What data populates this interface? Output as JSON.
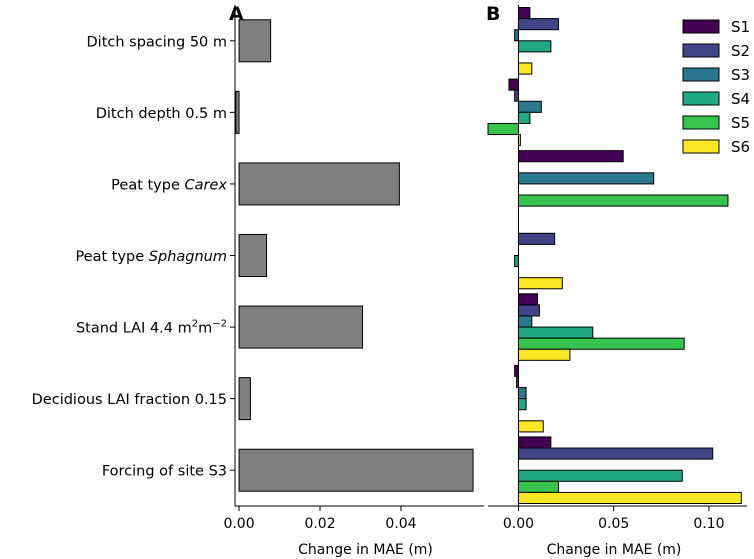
{
  "chart_data": [
    {
      "type": "bar",
      "orientation": "horizontal",
      "panel_label": "A",
      "xlabel": "Change in MAE (m)",
      "xlim": [
        -0.001,
        0.0605
      ],
      "xticks": [
        0.0,
        0.02,
        0.04
      ],
      "xtick_labels": [
        "0.00",
        "0.02",
        "0.04"
      ],
      "grid": false,
      "bar_color": "#7f7f7f",
      "categories": [
        {
          "pre": "Ditch spacing 50 m",
          "it": "",
          "post": "",
          "value": 0.0078
        },
        {
          "pre": "Ditch depth 0.5 m",
          "it": "",
          "post": "",
          "value": -0.0008
        },
        {
          "pre": "Peat type ",
          "it": "Carex",
          "post": "",
          "value": 0.0396
        },
        {
          "pre": "Peat type ",
          "it": "Sphagnum",
          "post": "",
          "value": 0.0068
        },
        {
          "pre": "Stand LAI 4.4 m",
          "sup1": "2",
          "mid": "m",
          "sup2": "−2",
          "it": "",
          "post": "",
          "value": 0.0305
        },
        {
          "pre": "Decidious LAI fraction 0.15",
          "it": "",
          "post": "",
          "value": 0.0028
        },
        {
          "pre": "Forcing of site S3",
          "it": "",
          "post": "",
          "value": 0.0578
        }
      ]
    },
    {
      "type": "bar",
      "orientation": "horizontal",
      "panel_label": "B",
      "xlabel": "Change in MAE (m)",
      "xlim": [
        -0.016,
        0.12
      ],
      "xticks": [
        0.0,
        0.05,
        0.1
      ],
      "xtick_labels": [
        "0.00",
        "0.05",
        "0.10"
      ],
      "grid": false,
      "legend_position": "top-right",
      "series": [
        {
          "name": "S1",
          "color": "#440154",
          "values": [
            0.006,
            -0.005,
            0.055,
            null,
            0.01,
            -0.002,
            0.017
          ]
        },
        {
          "name": "S2",
          "color": "#414487",
          "values": [
            0.021,
            -0.002,
            null,
            0.019,
            0.011,
            -0.001,
            0.102
          ]
        },
        {
          "name": "S3",
          "color": "#2a788e",
          "values": [
            -0.002,
            0.012,
            0.071,
            null,
            0.007,
            0.004,
            null
          ]
        },
        {
          "name": "S4",
          "color": "#22a884",
          "values": [
            0.017,
            0.006,
            null,
            -0.002,
            0.039,
            0.004,
            0.086
          ]
        },
        {
          "name": "S5",
          "color": "#36c44e",
          "values": [
            null,
            -0.016,
            0.11,
            null,
            0.087,
            null,
            0.021
          ]
        },
        {
          "name": "S6",
          "color": "#fde725",
          "values": [
            0.007,
            0.001,
            null,
            0.023,
            0.027,
            0.013,
            0.117
          ]
        }
      ]
    }
  ]
}
